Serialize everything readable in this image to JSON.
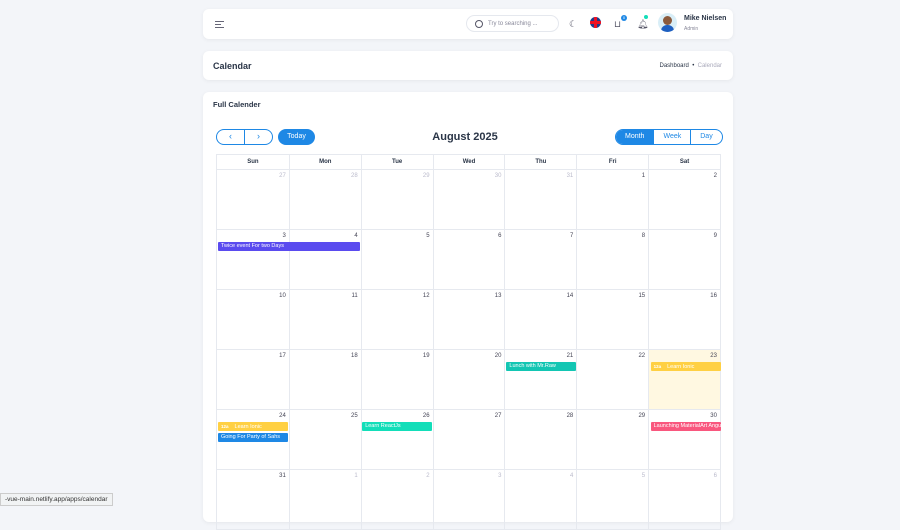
{
  "header": {
    "search_placeholder": "Try to searching ...",
    "cart_count": "0",
    "user_name": "Mike Nielsen",
    "user_role": "Admin"
  },
  "page": {
    "title": "Calendar",
    "breadcrumb": [
      "Dashboard",
      "Calendar"
    ]
  },
  "calendar": {
    "card_title": "Full Calender",
    "today_label": "Today",
    "month_label": "August 2025",
    "views": [
      "Month",
      "Week",
      "Day"
    ],
    "active_view": "Month",
    "weekdays": [
      "Sun",
      "Mon",
      "Tue",
      "Wed",
      "Thu",
      "Fri",
      "Sat"
    ],
    "weeks": [
      [
        "27",
        "28",
        "29",
        "30",
        "31",
        "1",
        "2"
      ],
      [
        "3",
        "4",
        "5",
        "6",
        "7",
        "8",
        "9"
      ],
      [
        "10",
        "11",
        "12",
        "13",
        "14",
        "15",
        "16"
      ],
      [
        "17",
        "18",
        "19",
        "20",
        "21",
        "22",
        "23"
      ],
      [
        "24",
        "25",
        "26",
        "27",
        "28",
        "29",
        "30"
      ],
      [
        "31",
        "1",
        "2",
        "3",
        "4",
        "5",
        "6"
      ]
    ],
    "events": [
      {
        "title": "Twice event For two Days",
        "color": "#5a4bef"
      },
      {
        "title": "Lunch with Mr.Raw",
        "color": "#13c6b3"
      },
      {
        "time": "12a",
        "title": "Learn Ionic",
        "color": "#ffd043"
      },
      {
        "time": "12a",
        "title": "Learn Ionic",
        "color": "#ffd043"
      },
      {
        "title": "Going For Party of Sahs",
        "color": "#1e88e5"
      },
      {
        "title": "Learn ReactJs",
        "color": "#13deb9"
      },
      {
        "title": "Launching MaterialArt Angular",
        "color": "#f9577e"
      }
    ]
  },
  "status_url": "-vue-main.netlify.app/apps/calendar"
}
